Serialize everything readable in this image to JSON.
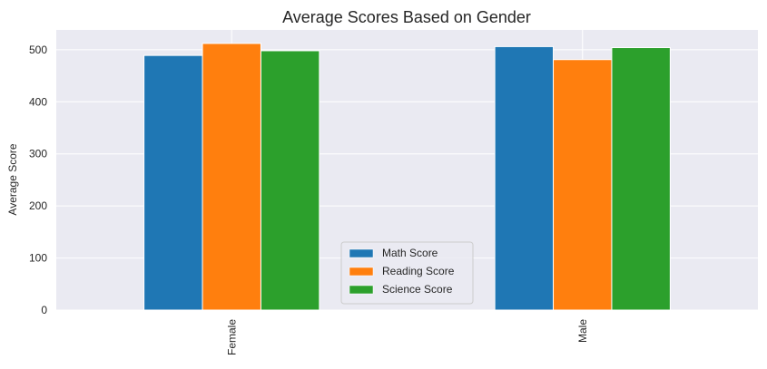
{
  "chart_data": {
    "type": "bar",
    "title": "Average Scores Based on Gender",
    "xlabel": "",
    "ylabel": "Average Score",
    "categories": [
      "Female",
      "Male"
    ],
    "series": [
      {
        "name": "Math Score",
        "values": [
          489,
          506
        ]
      },
      {
        "name": "Reading Score",
        "values": [
          512,
          481
        ]
      },
      {
        "name": "Science Score",
        "values": [
          498,
          504
        ]
      }
    ],
    "colors": [
      "#1f77b4",
      "#ff7f0e",
      "#2ca02c"
    ],
    "yticks": [
      0,
      100,
      200,
      300,
      400,
      500
    ],
    "ylim": [
      0,
      538
    ],
    "grid": true,
    "legend": "lower-center",
    "plot_background": "#eaeaf2"
  }
}
